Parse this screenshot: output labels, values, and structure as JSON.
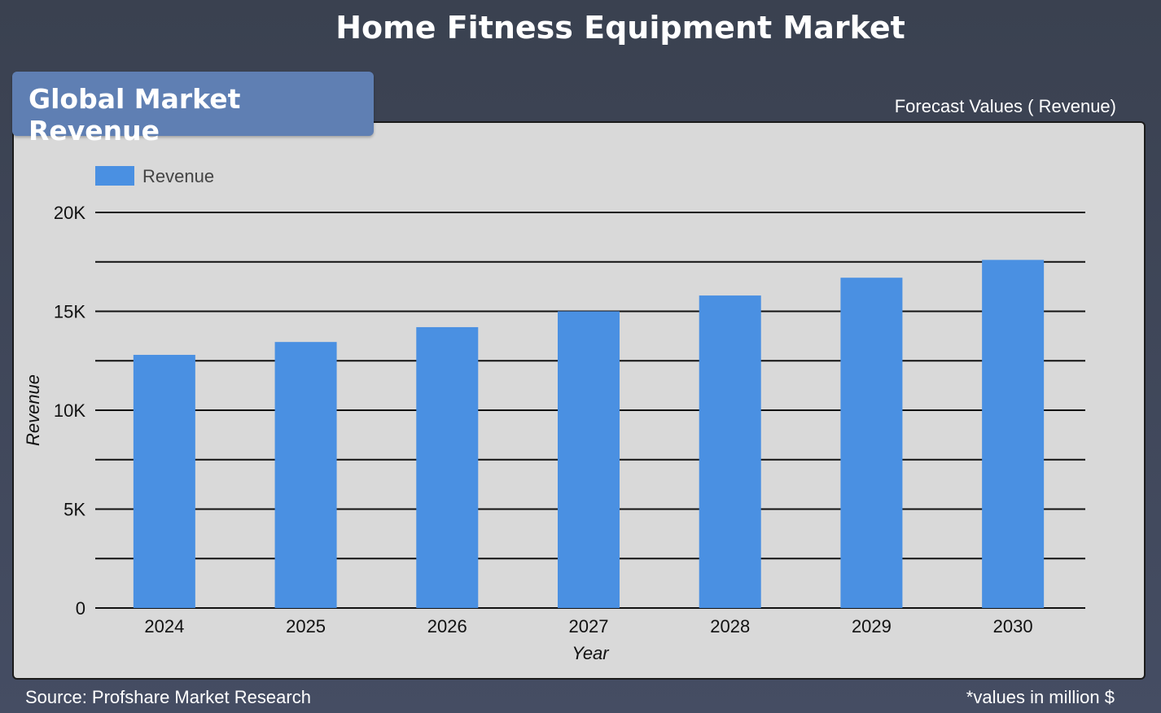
{
  "header": {
    "title": "Home Fitness Equipment Market",
    "tab_label": "Global Market Revenue",
    "forecast_label": "Forecast Values ( Revenue)"
  },
  "footer": {
    "source": "Source: Profshare Market Research",
    "units_note": "*values in million $"
  },
  "colors": {
    "bar": "#4a90e2",
    "panel": "#d9d9d9",
    "tab": "#5f7fb3"
  },
  "chart_data": {
    "type": "bar",
    "categories": [
      "2024",
      "2025",
      "2026",
      "2027",
      "2028",
      "2029",
      "2030"
    ],
    "series": [
      {
        "name": "Revenue",
        "values": [
          12800,
          13450,
          14200,
          15000,
          15800,
          16700,
          17600
        ]
      }
    ],
    "xlabel": "Year",
    "ylabel": "Revenue",
    "ylim": [
      0,
      20000
    ],
    "yticks": [
      {
        "value": 0,
        "label": "0"
      },
      {
        "value": 5000,
        "label": "5K"
      },
      {
        "value": 10000,
        "label": "10K"
      },
      {
        "value": 15000,
        "label": "15K"
      },
      {
        "value": 20000,
        "label": "20K"
      }
    ],
    "minor_gridlines": [
      2500,
      7500,
      12500,
      17500
    ],
    "grid": true,
    "legend_position": "top-left"
  }
}
